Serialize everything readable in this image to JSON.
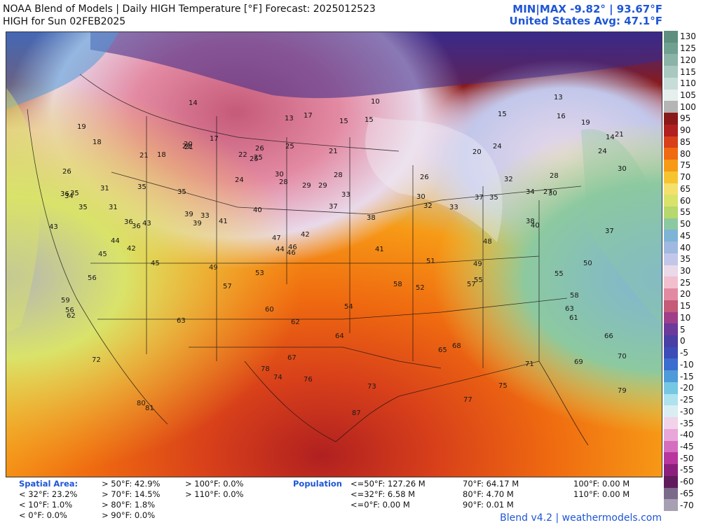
{
  "header": {
    "title_line1": "NOAA Blend of Models | Daily HIGH Temperature [°F] Forecast: 2025012523",
    "title_line2": "HIGH for Sun 02FEB2025",
    "minmax": "MIN|MAX -9.82° | 93.67°F",
    "avg": "United States Avg: 47.1°F"
  },
  "colorbar": {
    "labels": [
      "130",
      "125",
      "120",
      "115",
      "110",
      "105",
      "100",
      "95",
      "90",
      "85",
      "80",
      "75",
      "70",
      "65",
      "60",
      "55",
      "50",
      "45",
      "40",
      "35",
      "30",
      "25",
      "20",
      "15",
      "10",
      "5",
      "0",
      "-5",
      "-10",
      "-15",
      "-20",
      "-25",
      "-30",
      "-35",
      "-40",
      "-45",
      "-50",
      "-55",
      "-60",
      "-65",
      "-70"
    ],
    "colors": [
      "#5f8f7f",
      "#6fa090",
      "#8cb3a8",
      "#a9c8bf",
      "#c8ddd8",
      "#e5efec",
      "#b5b5b5",
      "#8a1a1a",
      "#b02020",
      "#d8401a",
      "#ef6a10",
      "#f79a16",
      "#f7c431",
      "#f4e06c",
      "#d9e36a",
      "#b6d86c",
      "#8cc9a0",
      "#7fb4d6",
      "#9fb9e0",
      "#c2c7ea",
      "#e9d9e9",
      "#f2bfcf",
      "#e38aa3",
      "#c55a79",
      "#9f3f8a",
      "#6b3a9b",
      "#4a3fa3",
      "#3d4db8",
      "#3a6dcf",
      "#4f9ad9",
      "#76c7e4",
      "#aee2ee",
      "#d9eef2",
      "#f1d3ea",
      "#e8a7d8",
      "#d66ec0",
      "#b9369f",
      "#8c1f7e",
      "#611b5d",
      "#7b6a8a",
      "#a7a0b2"
    ]
  },
  "map_labels": {
    "values": [
      "10",
      "14",
      "15",
      "13",
      "13",
      "15",
      "18",
      "20",
      "21",
      "21",
      "19",
      "14",
      "17",
      "18",
      "15",
      "17",
      "21",
      "21",
      "22",
      "24",
      "25",
      "19",
      "16",
      "21",
      "28",
      "32",
      "35",
      "31",
      "25",
      "26",
      "24",
      "28",
      "40",
      "42",
      "39",
      "36",
      "35",
      "37",
      "27",
      "30",
      "26",
      "25",
      "30",
      "20",
      "24",
      "26",
      "29",
      "30",
      "28",
      "29",
      "32",
      "33",
      "35",
      "33",
      "30",
      "34",
      "35",
      "36",
      "38",
      "36",
      "35",
      "37",
      "40",
      "41",
      "42",
      "43",
      "45",
      "44",
      "46",
      "48",
      "49",
      "50",
      "52",
      "53",
      "55",
      "56",
      "57",
      "58",
      "60",
      "61",
      "62",
      "63",
      "64",
      "65",
      "66",
      "67",
      "68",
      "69",
      "70",
      "71",
      "72",
      "73",
      "74",
      "75",
      "76",
      "77",
      "78",
      "79",
      "80",
      "81",
      "87",
      "59",
      "54",
      "47",
      "51",
      "55",
      "58",
      "44",
      "45",
      "46",
      "41",
      "43",
      "39",
      "33",
      "34",
      "37",
      "38",
      "31",
      "63",
      "62",
      "57",
      "56",
      "49"
    ],
    "examples_shown": true
  },
  "stats": {
    "spatial_label": "Spatial Area:",
    "col1": [
      "< 32°F: 23.2%",
      "< 10°F: 1.0%",
      "< 0°F: 0.0%"
    ],
    "col2": [
      "> 50°F: 42.9%",
      "> 70°F: 14.5%",
      "> 80°F: 1.8%",
      "> 90°F: 0.0%"
    ],
    "col3": [
      "> 100°F: 0.0%",
      "> 110°F: 0.0%"
    ],
    "pop_label": "Population",
    "col4": [
      "<=50°F: 127.26 M",
      "<=32°F: 6.58 M",
      "<=0°F: 0.00 M"
    ],
    "col5": [
      "70°F: 64.17 M",
      "80°F: 4.70 M",
      "90°F: 0.01 M"
    ],
    "col6": [
      "100°F: 0.00 M",
      "110°F: 0.00 M"
    ]
  },
  "footer": "Blend v4.2 | weathermodels.com"
}
